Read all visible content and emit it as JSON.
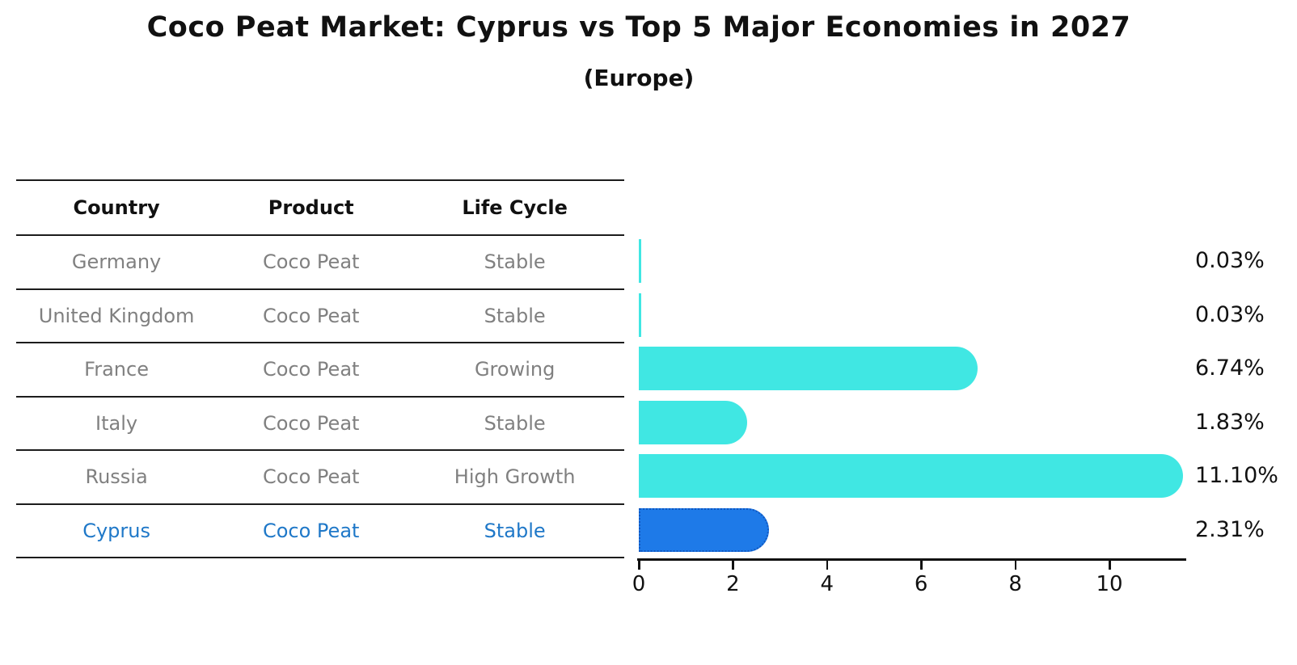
{
  "header": {
    "title": "Coco Peat Market: Cyprus vs Top 5 Major Economies in 2027",
    "subtitle": "(Europe)"
  },
  "table": {
    "headers": [
      "Country",
      "Product",
      "Life Cycle"
    ],
    "rows": [
      {
        "country": "Germany",
        "product": "Coco Peat",
        "life_cycle": "Stable",
        "highlight": false
      },
      {
        "country": "United Kingdom",
        "product": "Coco Peat",
        "life_cycle": "Stable",
        "highlight": false
      },
      {
        "country": "France",
        "product": "Coco Peat",
        "life_cycle": "Growing",
        "highlight": false
      },
      {
        "country": "Italy",
        "product": "Coco Peat",
        "life_cycle": "Stable",
        "highlight": false
      },
      {
        "country": "Russia",
        "product": "Coco Peat",
        "life_cycle": "High Growth",
        "highlight": false
      },
      {
        "country": "Cyprus",
        "product": "Coco Peat",
        "life_cycle": "Stable",
        "highlight": true
      }
    ]
  },
  "chart_data": {
    "type": "bar",
    "orientation": "horizontal",
    "title": "Coco Peat Market: Cyprus vs Top 5 Major Economies in 2027",
    "subtitle": "(Europe)",
    "categories": [
      "Germany",
      "United Kingdom",
      "France",
      "Italy",
      "Russia",
      "Cyprus"
    ],
    "values": [
      0.03,
      0.03,
      6.74,
      1.83,
      11.1,
      2.31
    ],
    "value_labels": [
      "0.03%",
      "0.03%",
      "6.74%",
      "1.83%",
      "11.10%",
      "2.31%"
    ],
    "x_ticks": [
      0,
      2,
      4,
      6,
      8,
      10
    ],
    "xlim": [
      0,
      11.67
    ],
    "grid": false,
    "legend": "none",
    "highlight_index": 5,
    "bar_color": "#40e7e3",
    "highlight_bar_color": "#1e7ae8",
    "highlight_border_color": "#1157c0"
  },
  "colors": {
    "row_text": "#808080",
    "highlight_text": "#1f78c8",
    "line": "#1c1c1c",
    "axis": "#111111"
  }
}
